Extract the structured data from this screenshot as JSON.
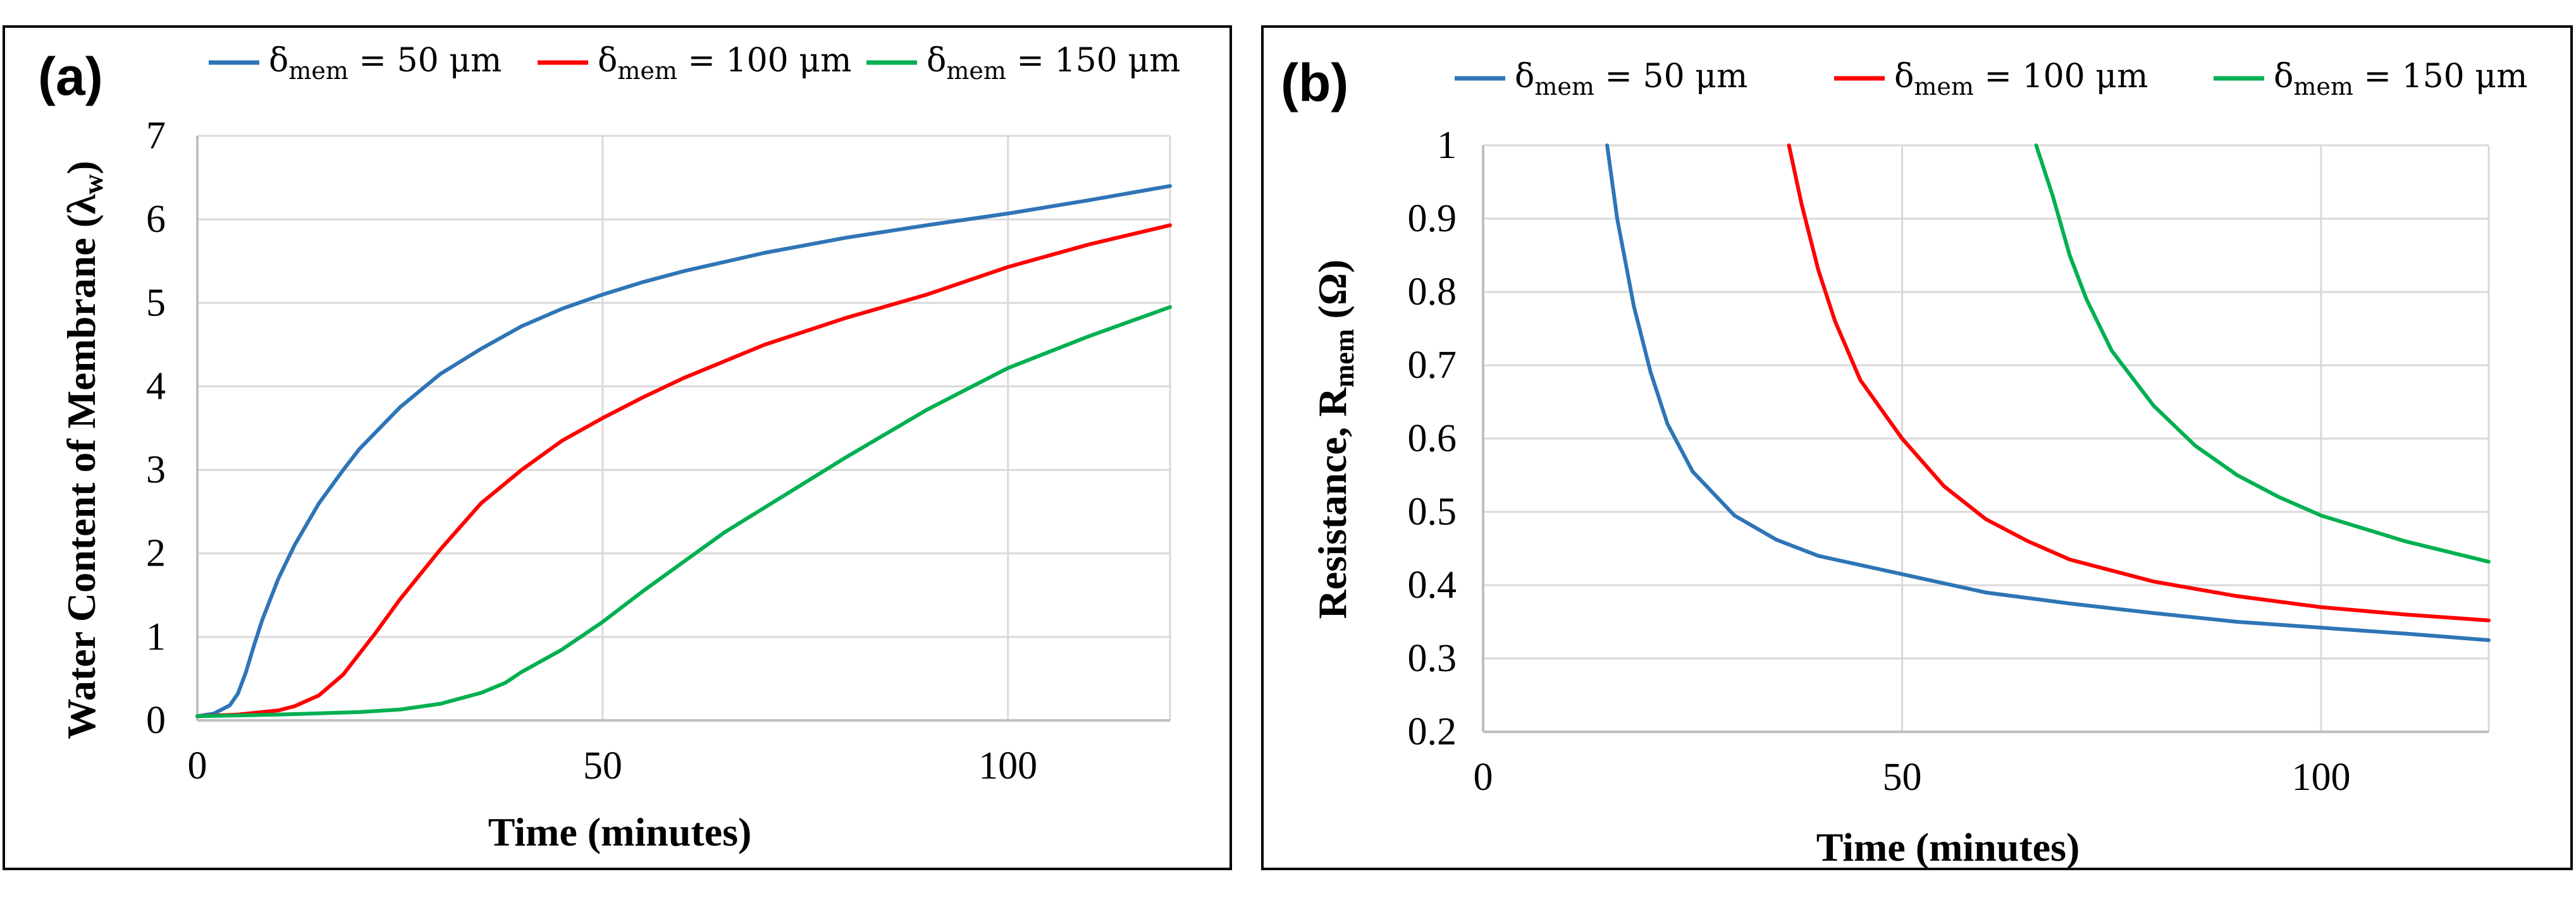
{
  "chart_data": [
    {
      "type": "line",
      "panel_label": "(a)",
      "xlabel": "Time (minutes)",
      "ylabel_main": "Water Content of Membrane (λ",
      "ylabel_sub": "w",
      "ylabel_end": ")",
      "xlim": [
        0,
        120
      ],
      "ylim": [
        0,
        7
      ],
      "xticks": [
        "0",
        "50",
        "100"
      ],
      "xtick_values": [
        0,
        50,
        100
      ],
      "yticks": [
        "0",
        "1",
        "2",
        "3",
        "4",
        "5",
        "6",
        "7"
      ],
      "ytick_values": [
        0,
        1,
        2,
        3,
        4,
        5,
        6,
        7
      ],
      "grid": true,
      "legend_position": "top",
      "series": [
        {
          "name": "δ",
          "sub": "mem",
          "rest": " = 50 μm",
          "color": "#2e75b6",
          "x": [
            0,
            2,
            4,
            5,
            6,
            7,
            8,
            10,
            12,
            15,
            18,
            20,
            25,
            30,
            35,
            40,
            45,
            50,
            55,
            60,
            70,
            80,
            90,
            100,
            110,
            120
          ],
          "y": [
            0.05,
            0.08,
            0.18,
            0.32,
            0.58,
            0.9,
            1.2,
            1.7,
            2.1,
            2.6,
            3.0,
            3.25,
            3.75,
            4.15,
            4.45,
            4.72,
            4.93,
            5.1,
            5.25,
            5.38,
            5.6,
            5.78,
            5.93,
            6.07,
            6.23,
            6.4
          ]
        },
        {
          "name": "δ",
          "sub": "mem",
          "rest": " = 100 μm",
          "color": "#ff0000",
          "x": [
            0,
            5,
            10,
            12,
            15,
            18,
            20,
            22,
            25,
            30,
            35,
            40,
            45,
            50,
            55,
            60,
            70,
            80,
            90,
            100,
            110,
            120
          ],
          "y": [
            0.05,
            0.07,
            0.12,
            0.17,
            0.3,
            0.55,
            0.8,
            1.05,
            1.45,
            2.05,
            2.6,
            3.0,
            3.35,
            3.62,
            3.87,
            4.1,
            4.5,
            4.82,
            5.1,
            5.43,
            5.7,
            5.93
          ]
        },
        {
          "name": "δ",
          "sub": "mem",
          "rest": " = 150 μm",
          "color": "#00b050",
          "x": [
            0,
            10,
            20,
            25,
            30,
            35,
            38,
            40,
            45,
            50,
            55,
            60,
            65,
            70,
            80,
            90,
            100,
            110,
            120
          ],
          "y": [
            0.05,
            0.07,
            0.1,
            0.13,
            0.2,
            0.33,
            0.45,
            0.58,
            0.85,
            1.18,
            1.55,
            1.9,
            2.25,
            2.55,
            3.15,
            3.72,
            4.22,
            4.6,
            4.95
          ]
        }
      ]
    },
    {
      "type": "line",
      "panel_label": "(b)",
      "xlabel": "Time (minutes)",
      "ylabel_main": "Resistance, R",
      "ylabel_sub": "mem",
      "ylabel_end": " (Ω)",
      "xlim": [
        0,
        120
      ],
      "ylim": [
        0.2,
        1
      ],
      "xticks": [
        "0",
        "50",
        "100"
      ],
      "xtick_values": [
        0,
        50,
        100
      ],
      "yticks": [
        "0.2",
        "0.3",
        "0.4",
        "0.5",
        "0.6",
        "0.7",
        "0.8",
        "0.9",
        "1"
      ],
      "ytick_values": [
        0.2,
        0.3,
        0.4,
        0.5,
        0.6,
        0.7,
        0.8,
        0.9,
        1.0
      ],
      "grid": true,
      "legend_position": "top",
      "series": [
        {
          "name": "δ",
          "sub": "mem",
          "rest": " = 50 μm",
          "color": "#2e75b6",
          "x": [
            14.8,
            16,
            18,
            20,
            22,
            25,
            30,
            35,
            40,
            50,
            60,
            70,
            80,
            90,
            100,
            110,
            120
          ],
          "y": [
            1.0,
            0.9,
            0.78,
            0.69,
            0.62,
            0.555,
            0.495,
            0.462,
            0.44,
            0.415,
            0.39,
            0.375,
            0.362,
            0.35,
            0.342,
            0.334,
            0.325
          ]
        },
        {
          "name": "δ",
          "sub": "mem",
          "rest": " = 100 μm",
          "color": "#ff0000",
          "x": [
            36.5,
            38,
            40,
            42,
            45,
            50,
            55,
            60,
            65,
            70,
            80,
            90,
            100,
            110,
            120
          ],
          "y": [
            1.0,
            0.92,
            0.83,
            0.76,
            0.68,
            0.6,
            0.535,
            0.49,
            0.46,
            0.435,
            0.405,
            0.385,
            0.37,
            0.36,
            0.352
          ]
        },
        {
          "name": "δ",
          "sub": "mem",
          "rest": " = 150 μm",
          "color": "#00b050",
          "x": [
            66,
            68,
            70,
            72,
            75,
            80,
            85,
            90,
            95,
            100,
            110,
            120
          ],
          "y": [
            1.0,
            0.93,
            0.85,
            0.79,
            0.72,
            0.645,
            0.59,
            0.55,
            0.52,
            0.495,
            0.46,
            0.432
          ]
        }
      ]
    }
  ]
}
